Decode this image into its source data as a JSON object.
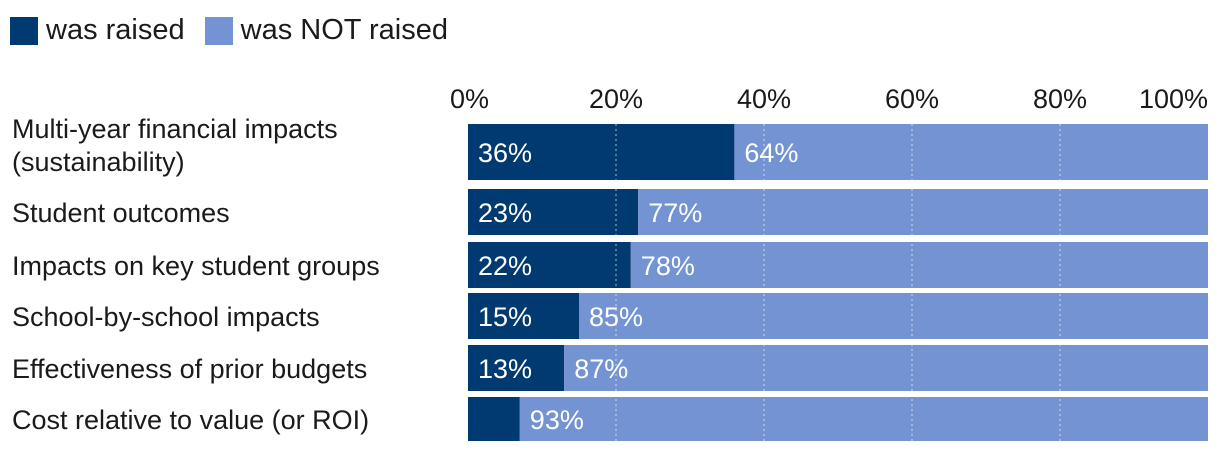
{
  "chart_data": {
    "type": "bar",
    "orientation": "horizontal",
    "stacked": true,
    "title": "",
    "xlabel": "",
    "ylabel": "",
    "xlim": [
      0,
      100
    ],
    "x_ticks": [
      "0%",
      "20%",
      "40%",
      "60%",
      "80%",
      "100%"
    ],
    "categories": [
      [
        "Multi-year financial impacts",
        "(sustainability)"
      ],
      [
        "Student outcomes"
      ],
      [
        "Impacts on key student groups"
      ],
      [
        "School-by-school impacts"
      ],
      [
        "Effectiveness of prior budgets"
      ],
      [
        "Cost relative to value (or ROI)"
      ]
    ],
    "series": [
      {
        "name": "was raised",
        "color": "#003a70",
        "values": [
          36,
          23,
          22,
          15,
          13,
          7
        ],
        "labels": [
          "36%",
          "23%",
          "22%",
          "15%",
          "13%",
          ""
        ]
      },
      {
        "name": "was NOT raised",
        "color": "#7393d3",
        "values": [
          64,
          77,
          78,
          85,
          87,
          93
        ],
        "labels": [
          "64%",
          "77%",
          "78%",
          "85%",
          "87%",
          "93%"
        ]
      }
    ],
    "legend_position": "top-left",
    "grid": "dotted vertical"
  }
}
